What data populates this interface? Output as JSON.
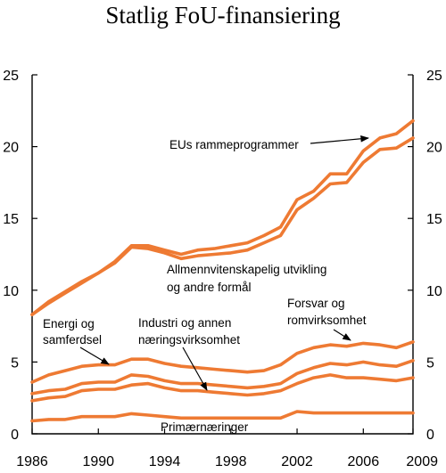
{
  "chart_data": {
    "type": "line",
    "title": "Statlig  FoU-finansiering",
    "xlabel": "",
    "ylabel": "",
    "xlim": [
      1986,
      2009
    ],
    "ylim": [
      0,
      25
    ],
    "x_ticks": [
      "1986",
      "1990",
      "1994",
      "1998",
      "2002",
      "2006",
      "2009"
    ],
    "y_ticks": [
      "0",
      "5",
      "10",
      "15",
      "20",
      "25"
    ],
    "grid": false,
    "stacked": true,
    "x": [
      1986,
      1987,
      1988,
      1989,
      1990,
      1991,
      1992,
      1993,
      1994,
      1995,
      1996,
      1997,
      1998,
      1999,
      2000,
      2001,
      2002,
      2003,
      2004,
      2005,
      2006,
      2007,
      2008,
      2009
    ],
    "series": [
      {
        "name": "Primærnæringer",
        "values": [
          0.9,
          1.0,
          1.0,
          1.2,
          1.2,
          1.2,
          1.4,
          1.3,
          1.2,
          1.1,
          1.1,
          1.1,
          1.1,
          1.1,
          1.1,
          1.1,
          1.55,
          1.45,
          1.45,
          1.45,
          1.45,
          1.45,
          1.45,
          1.45
        ]
      },
      {
        "name": "Industri og annen næringsvirksomhet",
        "values": [
          2.3,
          2.5,
          2.6,
          3.0,
          3.1,
          3.1,
          3.4,
          3.5,
          3.2,
          3.0,
          3.0,
          2.9,
          2.8,
          2.7,
          2.8,
          3.0,
          3.5,
          3.9,
          4.1,
          3.9,
          3.9,
          3.8,
          3.7,
          3.9
        ]
      },
      {
        "name": "Energi og samferdsel",
        "values": [
          2.8,
          3.0,
          3.1,
          3.5,
          3.6,
          3.6,
          4.1,
          4.0,
          3.7,
          3.5,
          3.5,
          3.4,
          3.3,
          3.2,
          3.3,
          3.5,
          4.2,
          4.6,
          4.9,
          4.8,
          5.0,
          4.8,
          4.7,
          5.1
        ]
      },
      {
        "name": "Forsvar og romvirksomhet",
        "values": [
          3.6,
          4.1,
          4.4,
          4.7,
          4.8,
          4.8,
          5.2,
          5.2,
          4.9,
          4.7,
          4.6,
          4.5,
          4.4,
          4.3,
          4.4,
          4.8,
          5.6,
          6.0,
          6.2,
          6.1,
          6.3,
          6.2,
          6.0,
          6.4
        ]
      },
      {
        "name": "Allmennvitenskapelig utvikling og andre formål",
        "values": [
          8.3,
          9.1,
          9.8,
          10.5,
          11.2,
          11.9,
          13.0,
          12.9,
          12.6,
          12.2,
          12.4,
          12.5,
          12.6,
          12.8,
          13.3,
          13.8,
          15.6,
          16.4,
          17.4,
          17.5,
          18.9,
          19.8,
          19.9,
          20.6
        ]
      },
      {
        "name": "EUs rammeprogrammer",
        "values": [
          8.3,
          9.2,
          9.9,
          10.6,
          11.2,
          12.0,
          13.1,
          13.1,
          12.8,
          12.5,
          12.8,
          12.9,
          13.1,
          13.3,
          13.8,
          14.4,
          16.3,
          16.9,
          18.1,
          18.1,
          19.7,
          20.6,
          20.9,
          21.8
        ]
      }
    ],
    "annotations": [
      {
        "text": "EUs rammeprogrammer"
      },
      {
        "text": "Allmennvitenskapelig utvikling"
      },
      {
        "text": "og andre formål"
      },
      {
        "text": "Forsvar og"
      },
      {
        "text": "romvirksomhet"
      },
      {
        "text": "Energi og"
      },
      {
        "text": "samferdsel"
      },
      {
        "text": "Industri og annen"
      },
      {
        "text": "næringsvirksomhet"
      },
      {
        "text": "Primærnæringer"
      }
    ],
    "colors": {
      "series": "#ee7a33",
      "text": "#000000"
    }
  }
}
